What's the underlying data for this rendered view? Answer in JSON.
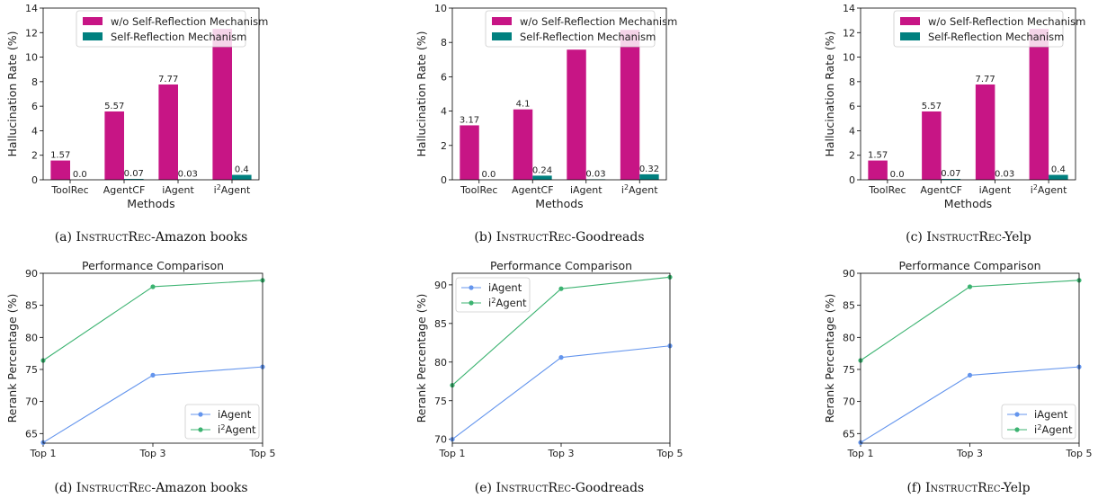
{
  "colors": {
    "bar_without": "#C71585",
    "bar_with": "#00807F",
    "line_iagent": "#6495ED",
    "line_i2agent": "#3CB371"
  },
  "captions": [
    {
      "prefix": "(a)",
      "name": "InstructRec",
      "suffix": "-Amazon books"
    },
    {
      "prefix": "(b)",
      "name": "InstructRec",
      "suffix": "-Goodreads"
    },
    {
      "prefix": "(c)",
      "name": "InstructRec",
      "suffix": "-Yelp"
    },
    {
      "prefix": "(d)",
      "name": "InstructRec",
      "suffix": "-Amazon books"
    },
    {
      "prefix": "(e)",
      "name": "InstructRec",
      "suffix": "-Goodreads"
    },
    {
      "prefix": "(f)",
      "name": "InstructRec",
      "suffix": "-Yelp"
    }
  ],
  "chart_data": [
    {
      "type": "bar",
      "title": "",
      "xlabel": "Methods",
      "ylabel": "Hallucination Rate (%)",
      "ylim": [
        0,
        14
      ],
      "yticks": [
        0,
        2,
        4,
        6,
        8,
        10,
        12,
        14
      ],
      "categories": [
        "ToolRec",
        "AgentCF",
        "iAgent",
        "i2Agent"
      ],
      "series": [
        {
          "name": "w/o Self-Reflection Mechanism",
          "values": [
            1.57,
            5.57,
            7.77,
            12.3
          ],
          "labels": [
            "1.57",
            "5.57",
            "7.77",
            ""
          ]
        },
        {
          "name": "Self-Reflection Mechanism",
          "values": [
            0.0,
            0.07,
            0.03,
            0.4
          ],
          "labels": [
            "0.0",
            "0.07",
            "0.03",
            "0.4"
          ]
        }
      ],
      "legend": "top-center"
    },
    {
      "type": "bar",
      "title": "",
      "xlabel": "Methods",
      "ylabel": "Hallucination Rate (%)",
      "ylim": [
        0,
        10
      ],
      "yticks": [
        0,
        2,
        4,
        6,
        8,
        10
      ],
      "categories": [
        "ToolRec",
        "AgentCF",
        "iAgent",
        "i2Agent"
      ],
      "series": [
        {
          "name": "w/o Self-Reflection Mechanism",
          "values": [
            3.17,
            4.1,
            7.58,
            8.73
          ],
          "labels": [
            "3.17",
            "4.1",
            "",
            ""
          ]
        },
        {
          "name": "Self-Reflection Mechanism",
          "values": [
            0.0,
            0.24,
            0.03,
            0.32
          ],
          "labels": [
            "0.0",
            "0.24",
            "0.03",
            "0.32"
          ]
        }
      ],
      "legend": "top-center"
    },
    {
      "type": "bar",
      "title": "",
      "xlabel": "Methods",
      "ylabel": "Hallucination Rate (%)",
      "ylim": [
        0,
        14
      ],
      "yticks": [
        0,
        2,
        4,
        6,
        8,
        10,
        12,
        14
      ],
      "categories": [
        "ToolRec",
        "AgentCF",
        "iAgent",
        "i2Agent"
      ],
      "series": [
        {
          "name": "w/o Self-Reflection Mechanism",
          "values": [
            1.57,
            5.57,
            7.77,
            12.3
          ],
          "labels": [
            "1.57",
            "5.57",
            "7.77",
            ""
          ]
        },
        {
          "name": "Self-Reflection Mechanism",
          "values": [
            0.0,
            0.07,
            0.03,
            0.4
          ],
          "labels": [
            "0.0",
            "0.07",
            "0.03",
            "0.4"
          ]
        }
      ],
      "legend": "top-center"
    },
    {
      "type": "line",
      "title": "Performance Comparison",
      "xlabel": "",
      "ylabel": "Rerank Percentage (%)",
      "ylim": [
        63.5,
        90
      ],
      "yticks": [
        65,
        70,
        75,
        80,
        85,
        90
      ],
      "x": [
        "Top 1",
        "Top 3",
        "Top 5"
      ],
      "series": [
        {
          "name": "iAgent",
          "values": [
            63.6,
            74.1,
            75.4
          ]
        },
        {
          "name": "i2Agent",
          "values": [
            76.4,
            87.9,
            88.9
          ]
        }
      ],
      "legend": "bottom-right"
    },
    {
      "type": "line",
      "title": "Performance Comparison",
      "xlabel": "",
      "ylabel": "Rerank Percentage (%)",
      "ylim": [
        69.5,
        91.5
      ],
      "yticks": [
        70,
        75,
        80,
        85,
        90
      ],
      "x": [
        "Top 1",
        "Top 3",
        "Top 5"
      ],
      "series": [
        {
          "name": "iAgent",
          "values": [
            70.0,
            80.6,
            82.1
          ]
        },
        {
          "name": "i2Agent",
          "values": [
            77.0,
            89.5,
            91.0
          ]
        }
      ],
      "legend": "top-left"
    },
    {
      "type": "line",
      "title": "Performance Comparison",
      "xlabel": "",
      "ylabel": "Rerank Percentage (%)",
      "ylim": [
        63.5,
        90
      ],
      "yticks": [
        65,
        70,
        75,
        80,
        85,
        90
      ],
      "x": [
        "Top 1",
        "Top 3",
        "Top 5"
      ],
      "series": [
        {
          "name": "iAgent",
          "values": [
            63.6,
            74.1,
            75.4
          ]
        },
        {
          "name": "i2Agent",
          "values": [
            76.4,
            87.9,
            88.9
          ]
        }
      ],
      "legend": "bottom-right"
    }
  ]
}
